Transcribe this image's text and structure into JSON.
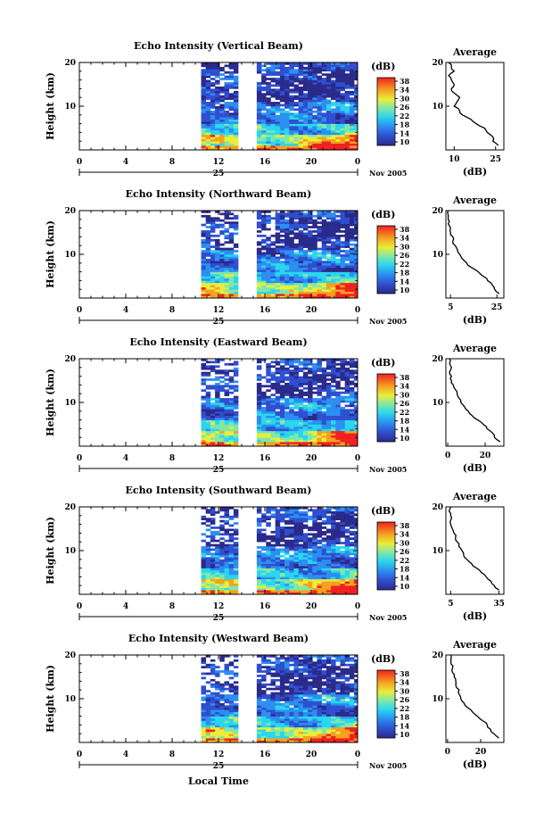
{
  "figure": {
    "xlabel": "Local Time",
    "date_day": "25",
    "date_month_year": "Nov 2005",
    "avg_title": "Average",
    "avg_xlabel": "(dB)",
    "cbar_label": "(dB)"
  },
  "chart_data": [
    {
      "type": "heatmap",
      "title": "Echo Intensity (Vertical Beam)",
      "ylabel": "Height (km)",
      "x_ticks": [
        "0",
        "4",
        "8",
        "12",
        "16",
        "20",
        "0"
      ],
      "y_ticks": [
        "20",
        "10"
      ],
      "xlim": [
        0,
        24
      ],
      "ylim": [
        0,
        20
      ],
      "data_start_hour": 10.5,
      "gap_hours": [
        14.0,
        15.3
      ],
      "cbar_ticks": [
        "38",
        "34",
        "30",
        "26",
        "22",
        "18",
        "14",
        "10"
      ],
      "cbar_range": [
        10,
        38
      ],
      "profile": {
        "type": "line",
        "title": "Average",
        "x_ticks": [
          "10",
          "25"
        ],
        "y_ticks": [
          "20",
          "10"
        ],
        "xlim": [
          7,
          28
        ],
        "height_km": [
          1,
          2,
          3,
          4,
          5,
          6,
          7,
          8,
          9,
          10,
          11,
          12,
          13,
          14,
          15,
          16,
          17,
          18,
          19,
          20
        ],
        "db": [
          26,
          24,
          24,
          22,
          21,
          18,
          16,
          13,
          12,
          10,
          11,
          12,
          10,
          9,
          10,
          9,
          8,
          10,
          9,
          8
        ]
      }
    },
    {
      "type": "heatmap",
      "title": "Echo Intensity (Northward Beam)",
      "ylabel": "Height (km)",
      "x_ticks": [
        "0",
        "4",
        "8",
        "12",
        "16",
        "20",
        "0"
      ],
      "y_ticks": [
        "20",
        "10"
      ],
      "xlim": [
        0,
        24
      ],
      "ylim": [
        0,
        20
      ],
      "data_start_hour": 10.5,
      "gap_hours": [
        14.0,
        15.3
      ],
      "cbar_ticks": [
        "38",
        "34",
        "30",
        "26",
        "22",
        "18",
        "14",
        "10"
      ],
      "cbar_range": [
        10,
        38
      ],
      "profile": {
        "type": "line",
        "title": "Average",
        "x_ticks": [
          "5",
          "25"
        ],
        "y_ticks": [
          "20",
          "10"
        ],
        "xlim": [
          3,
          28
        ],
        "height_km": [
          1,
          2,
          3,
          4,
          5,
          6,
          7,
          8,
          9,
          10,
          11,
          12,
          13,
          14,
          15,
          16,
          17,
          18,
          19,
          20
        ],
        "db": [
          26,
          24,
          23,
          21,
          19,
          17,
          14,
          12,
          10,
          9,
          8,
          7,
          6,
          6,
          5,
          5,
          4,
          4,
          4,
          4
        ]
      }
    },
    {
      "type": "heatmap",
      "title": "Echo Intensity (Eastward Beam)",
      "ylabel": "Height (km)",
      "x_ticks": [
        "0",
        "4",
        "8",
        "12",
        "16",
        "20",
        "0"
      ],
      "y_ticks": [
        "20",
        "10"
      ],
      "xlim": [
        0,
        24
      ],
      "ylim": [
        0,
        20
      ],
      "data_start_hour": 10.5,
      "gap_hours": [
        14.0,
        15.3
      ],
      "cbar_ticks": [
        "38",
        "34",
        "30",
        "26",
        "22",
        "18",
        "14",
        "10"
      ],
      "cbar_range": [
        10,
        38
      ],
      "profile": {
        "type": "line",
        "title": "Average",
        "x_ticks": [
          "0",
          "20"
        ],
        "y_ticks": [
          "20",
          "10"
        ],
        "xlim": [
          -1,
          30
        ],
        "height_km": [
          1,
          2,
          3,
          4,
          5,
          6,
          7,
          8,
          9,
          10,
          11,
          12,
          13,
          14,
          15,
          16,
          17,
          18,
          19,
          20
        ],
        "db": [
          28,
          25,
          24,
          21,
          19,
          16,
          13,
          11,
          9,
          7,
          6,
          5,
          4,
          3,
          2,
          2,
          1,
          2,
          1,
          1
        ]
      }
    },
    {
      "type": "heatmap",
      "title": "Echo Intensity (Southward Beam)",
      "ylabel": "Height (km)",
      "x_ticks": [
        "0",
        "4",
        "8",
        "12",
        "16",
        "20",
        "0"
      ],
      "y_ticks": [
        "20",
        "10"
      ],
      "xlim": [
        0,
        24
      ],
      "ylim": [
        0,
        20
      ],
      "data_start_hour": 10.5,
      "gap_hours": [
        14.0,
        15.3
      ],
      "cbar_ticks": [
        "38",
        "34",
        "30",
        "26",
        "22",
        "18",
        "14",
        "10"
      ],
      "cbar_range": [
        10,
        38
      ],
      "profile": {
        "type": "line",
        "title": "Average",
        "x_ticks": [
          "5",
          "35"
        ],
        "y_ticks": [
          "20",
          "10"
        ],
        "xlim": [
          2,
          38
        ],
        "height_km": [
          1,
          2,
          3,
          4,
          5,
          6,
          7,
          8,
          9,
          10,
          11,
          12,
          13,
          14,
          15,
          16,
          17,
          18,
          19,
          20
        ],
        "db": [
          35,
          32,
          30,
          27,
          24,
          21,
          18,
          15,
          13,
          12,
          10,
          9,
          8,
          7,
          6,
          5,
          5,
          5,
          4,
          5
        ]
      }
    },
    {
      "type": "heatmap",
      "title": "Echo Intensity (Westward Beam)",
      "ylabel": "Height (km)",
      "x_ticks": [
        "0",
        "4",
        "8",
        "12",
        "16",
        "20",
        "0"
      ],
      "y_ticks": [
        "20",
        "10"
      ],
      "xlim": [
        0,
        24
      ],
      "ylim": [
        0,
        20
      ],
      "data_start_hour": 10.5,
      "gap_hours": [
        14.0,
        15.3
      ],
      "cbar_ticks": [
        "38",
        "34",
        "30",
        "26",
        "22",
        "18",
        "14",
        "10"
      ],
      "cbar_range": [
        10,
        38
      ],
      "profile": {
        "type": "line",
        "title": "Average",
        "x_ticks": [
          "0",
          "20"
        ],
        "y_ticks": [
          "20",
          "10"
        ],
        "xlim": [
          -1,
          34
        ],
        "height_km": [
          1,
          2,
          3,
          4,
          5,
          6,
          7,
          8,
          9,
          10,
          11,
          12,
          13,
          14,
          15,
          16,
          17,
          18,
          19,
          20
        ],
        "db": [
          31,
          28,
          26,
          24,
          21,
          18,
          15,
          12,
          10,
          8,
          7,
          7,
          5,
          5,
          4,
          3,
          3,
          2,
          2,
          2
        ]
      }
    }
  ]
}
